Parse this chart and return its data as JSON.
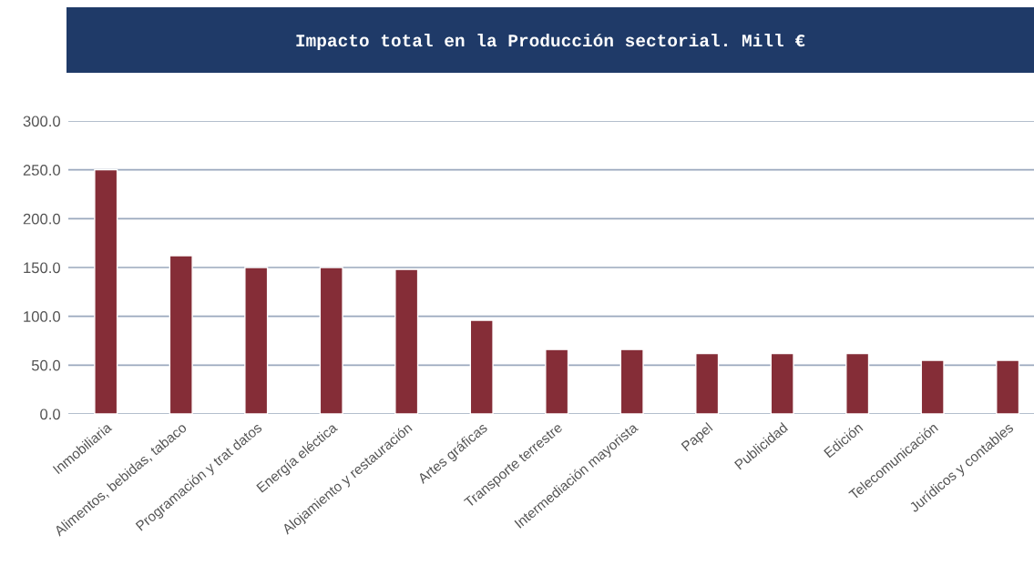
{
  "chart_data": {
    "type": "bar",
    "title": "Impacto total en la Producción sectorial. Mill €",
    "categories": [
      "Inmobiliaria",
      "Alimentos, bebidas, tabaco",
      "Programación y trat datos",
      "Energía eléctica",
      "Alojamiento y restauración",
      "Artes gráficas",
      "Transporte terrestre",
      "Intermediación mayorista",
      "Papel",
      "Publicidad",
      "Edición",
      "Telecomunicación",
      "Jurídicos y contables"
    ],
    "values": [
      250,
      162,
      150,
      150,
      148,
      96,
      66,
      66,
      62,
      62,
      62,
      55,
      55
    ],
    "color": "#852d37",
    "ylim": [
      0,
      300
    ],
    "yticks": [
      {
        "value": 0,
        "label": "0.0"
      },
      {
        "value": 50,
        "label": "50.0"
      },
      {
        "value": 100,
        "label": "100.0"
      },
      {
        "value": 150,
        "label": "150.0"
      },
      {
        "value": 200,
        "label": "200.0"
      },
      {
        "value": 250,
        "label": "250.0"
      },
      {
        "value": 300,
        "label": "300.0"
      }
    ],
    "grid": "y",
    "legend": false
  }
}
